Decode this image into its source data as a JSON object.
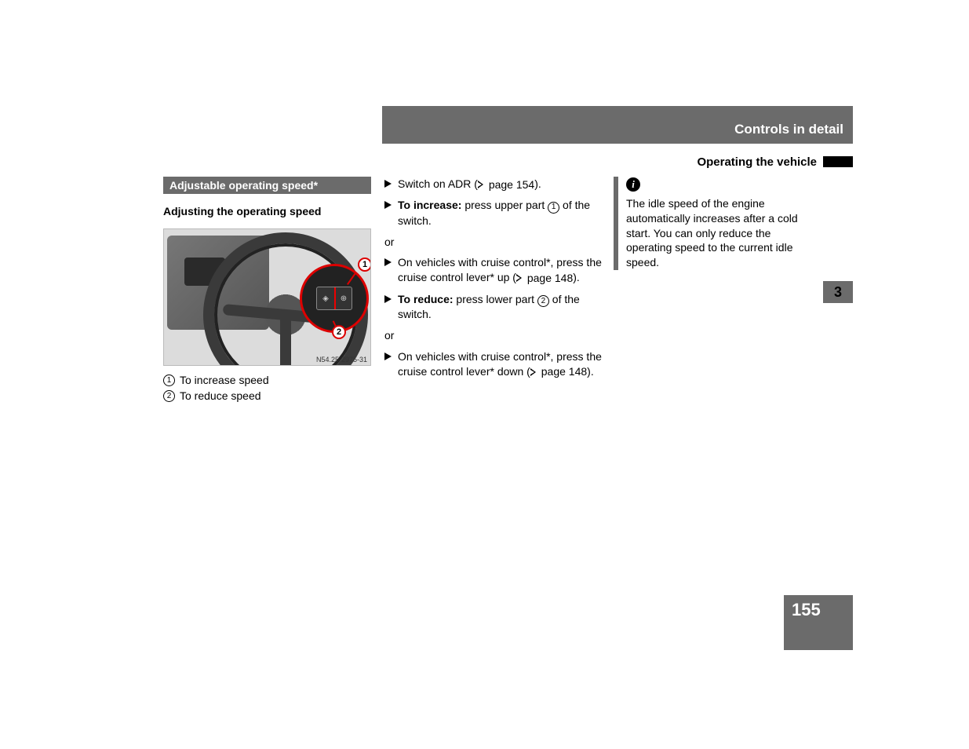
{
  "header": {
    "section_title": "Controls in detail",
    "subsection_title": "Operating the vehicle"
  },
  "chapter_tab": "3",
  "page_number": "155",
  "col1": {
    "box_title": "Adjustable operating speed*",
    "sub_title": "Adjusting the operating speed",
    "figure_code": "N54.25-2975-31",
    "legend": [
      {
        "num": "1",
        "text": "To increase speed"
      },
      {
        "num": "2",
        "text": "To reduce speed"
      }
    ]
  },
  "col2": {
    "step1_a": "Switch on ADR (",
    "step1_ref": "page 154",
    "step1_b": ").",
    "step2_bold": "To increase:",
    "step2_a": " press upper part ",
    "step2_num": "1",
    "step2_b": " of the switch.",
    "or1": "or",
    "step3_a": "On vehicles with cruise control*, press the cruise control lever* up (",
    "step3_ref": "page 148",
    "step3_b": ").",
    "step4_bold": "To reduce:",
    "step4_a": " press lower part ",
    "step4_num": "2",
    "step4_b": " of the switch.",
    "or2": "or",
    "step5_a": "On vehicles with cruise control*, press the cruise control lever* down (",
    "step5_ref": "page 148",
    "step5_b": ")."
  },
  "col3": {
    "info_text": "The idle speed of the engine automatically increases after a cold start. You can only reduce the operating speed to the current idle speed."
  },
  "colors": {
    "bar": "#6b6b6b",
    "accent_red": "#d00000",
    "text": "#000000",
    "bg": "#ffffff"
  }
}
